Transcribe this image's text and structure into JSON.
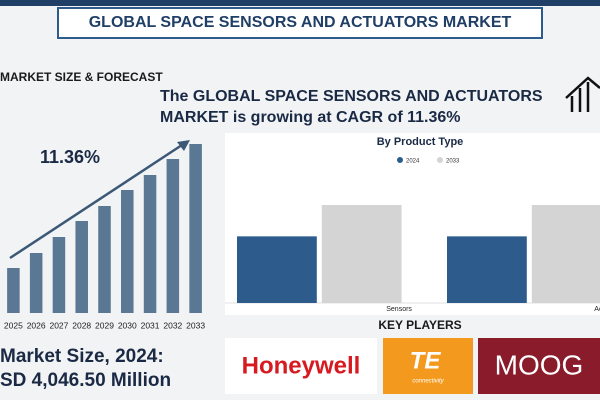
{
  "header": {
    "title": "GLOBAL SPACE SENSORS AND ACTUATORS MARKET"
  },
  "section_title": "MARKET SIZE & FORECAST",
  "headline": [
    "The GLOBAL SPACE SENSORS AND ACTUATORS",
    "MARKET is growing at CAGR of 11.36%"
  ],
  "chart_data": [
    {
      "type": "bar",
      "annotation": "11.36%",
      "categories": [
        "2025",
        "2026",
        "2027",
        "2028",
        "2029",
        "2030",
        "2031",
        "2032",
        "2033"
      ],
      "values": [
        45,
        60,
        76,
        92,
        107,
        123,
        138,
        154,
        169
      ],
      "color": "#5a7894"
    },
    {
      "type": "bar",
      "title": "By Product Type",
      "categories": [
        "Sensors",
        "Actuators"
      ],
      "series": [
        {
          "name": "2024",
          "color": "#2d5c8c",
          "values": [
            68,
            68
          ]
        },
        {
          "name": "2033",
          "color": "#d4d4d4",
          "values": [
            100,
            100
          ]
        }
      ]
    }
  ],
  "market_size": {
    "label": "Market Size, 2024:",
    "value": "SD 4,046.50 Million"
  },
  "key_players": {
    "title": "KEY PLAYERS",
    "logos": [
      "Honeywell",
      "TE",
      "connectivity",
      "MOOG"
    ]
  }
}
